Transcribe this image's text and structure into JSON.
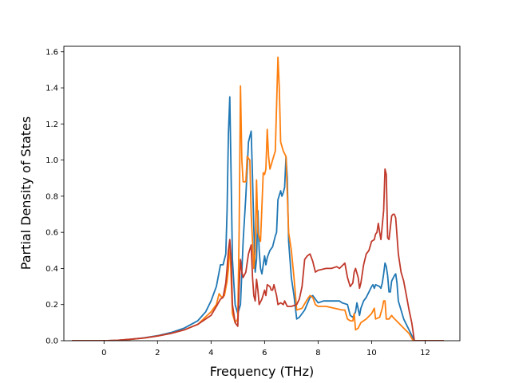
{
  "chart_data": {
    "type": "line",
    "title": "",
    "xlabel": "Frequency (THz)",
    "ylabel": "Partial Density of States",
    "xlim": [
      -1.5,
      13.3
    ],
    "ylim": [
      0.0,
      1.63
    ],
    "xticks": [
      0,
      2,
      4,
      6,
      8,
      10,
      12
    ],
    "yticks": [
      0.0,
      0.2,
      0.4,
      0.6,
      0.8,
      1.0,
      1.2,
      1.4,
      1.6
    ],
    "grid": false,
    "legend": "none",
    "series": [
      {
        "color": "#1f77b4",
        "points": [
          [
            -1.2,
            0
          ],
          [
            0,
            0
          ],
          [
            0.5,
            0.002
          ],
          [
            1,
            0.008
          ],
          [
            1.5,
            0.016
          ],
          [
            2,
            0.028
          ],
          [
            2.5,
            0.045
          ],
          [
            3,
            0.07
          ],
          [
            3.5,
            0.11
          ],
          [
            3.8,
            0.16
          ],
          [
            4,
            0.22
          ],
          [
            4.2,
            0.3
          ],
          [
            4.35,
            0.42
          ],
          [
            4.45,
            0.42
          ],
          [
            4.55,
            0.48
          ],
          [
            4.6,
            0.72
          ],
          [
            4.65,
            1.15
          ],
          [
            4.7,
            1.35
          ],
          [
            4.75,
            0.9
          ],
          [
            4.8,
            0.45
          ],
          [
            4.9,
            0.2
          ],
          [
            5.0,
            0.15
          ],
          [
            5.1,
            0.2
          ],
          [
            5.2,
            0.55
          ],
          [
            5.3,
            0.8
          ],
          [
            5.4,
            1.1
          ],
          [
            5.5,
            1.16
          ],
          [
            5.55,
            0.9
          ],
          [
            5.6,
            0.62
          ],
          [
            5.65,
            0.38
          ],
          [
            5.7,
            0.45
          ],
          [
            5.75,
            0.72
          ],
          [
            5.8,
            0.5
          ],
          [
            5.85,
            0.4
          ],
          [
            5.9,
            0.37
          ],
          [
            6.0,
            0.47
          ],
          [
            6.05,
            0.42
          ],
          [
            6.1,
            0.46
          ],
          [
            6.2,
            0.5
          ],
          [
            6.3,
            0.52
          ],
          [
            6.4,
            0.58
          ],
          [
            6.45,
            0.6
          ],
          [
            6.5,
            0.78
          ],
          [
            6.6,
            0.83
          ],
          [
            6.65,
            0.8
          ],
          [
            6.7,
            0.82
          ],
          [
            6.75,
            0.85
          ],
          [
            6.8,
            1.02
          ],
          [
            6.85,
            0.9
          ],
          [
            6.9,
            0.55
          ],
          [
            7.0,
            0.35
          ],
          [
            7.1,
            0.25
          ],
          [
            7.2,
            0.12
          ],
          [
            7.3,
            0.13
          ],
          [
            7.5,
            0.17
          ],
          [
            7.7,
            0.24
          ],
          [
            7.8,
            0.25
          ],
          [
            7.9,
            0.23
          ],
          [
            8.0,
            0.21
          ],
          [
            8.2,
            0.22
          ],
          [
            8.5,
            0.22
          ],
          [
            8.8,
            0.22
          ],
          [
            8.9,
            0.21
          ],
          [
            9.1,
            0.2
          ],
          [
            9.2,
            0.14
          ],
          [
            9.3,
            0.13
          ],
          [
            9.4,
            0.16
          ],
          [
            9.45,
            0.21
          ],
          [
            9.55,
            0.14
          ],
          [
            9.6,
            0.18
          ],
          [
            9.7,
            0.22
          ],
          [
            9.8,
            0.24
          ],
          [
            9.9,
            0.27
          ],
          [
            10.0,
            0.3
          ],
          [
            10.05,
            0.31
          ],
          [
            10.1,
            0.29
          ],
          [
            10.15,
            0.31
          ],
          [
            10.3,
            0.3
          ],
          [
            10.35,
            0.29
          ],
          [
            10.4,
            0.32
          ],
          [
            10.45,
            0.37
          ],
          [
            10.5,
            0.43
          ],
          [
            10.55,
            0.41
          ],
          [
            10.6,
            0.36
          ],
          [
            10.65,
            0.27
          ],
          [
            10.7,
            0.27
          ],
          [
            10.75,
            0.33
          ],
          [
            10.85,
            0.36
          ],
          [
            10.9,
            0.37
          ],
          [
            10.95,
            0.32
          ],
          [
            11.0,
            0.22
          ],
          [
            11.2,
            0.12
          ],
          [
            11.4,
            0.06
          ],
          [
            11.6,
            0.0
          ],
          [
            12.7,
            0.0
          ]
        ]
      },
      {
        "color": "#ff7f0e",
        "points": [
          [
            -1.2,
            0
          ],
          [
            0,
            0
          ],
          [
            0.5,
            0.002
          ],
          [
            1,
            0.008
          ],
          [
            1.5,
            0.015
          ],
          [
            2,
            0.026
          ],
          [
            2.5,
            0.04
          ],
          [
            3,
            0.06
          ],
          [
            3.5,
            0.09
          ],
          [
            4,
            0.16
          ],
          [
            4.2,
            0.2
          ],
          [
            4.3,
            0.26
          ],
          [
            4.4,
            0.24
          ],
          [
            4.5,
            0.25
          ],
          [
            4.6,
            0.33
          ],
          [
            4.65,
            0.4
          ],
          [
            4.7,
            0.55
          ],
          [
            4.75,
            0.35
          ],
          [
            4.8,
            0.15
          ],
          [
            4.9,
            0.1
          ],
          [
            5.0,
            0.12
          ],
          [
            5.05,
            0.6
          ],
          [
            5.1,
            1.41
          ],
          [
            5.15,
            1.0
          ],
          [
            5.2,
            0.88
          ],
          [
            5.3,
            0.88
          ],
          [
            5.35,
            1.02
          ],
          [
            5.45,
            1.0
          ],
          [
            5.5,
            0.7
          ],
          [
            5.6,
            0.4
          ],
          [
            5.65,
            0.5
          ],
          [
            5.7,
            0.89
          ],
          [
            5.75,
            0.6
          ],
          [
            5.85,
            0.55
          ],
          [
            5.95,
            0.93
          ],
          [
            6.0,
            0.92
          ],
          [
            6.05,
            0.95
          ],
          [
            6.1,
            1.17
          ],
          [
            6.15,
            1.02
          ],
          [
            6.2,
            0.95
          ],
          [
            6.3,
            1.0
          ],
          [
            6.4,
            1.05
          ],
          [
            6.45,
            1.3
          ],
          [
            6.5,
            1.57
          ],
          [
            6.55,
            1.4
          ],
          [
            6.6,
            1.1
          ],
          [
            6.7,
            1.05
          ],
          [
            6.8,
            1.02
          ],
          [
            6.9,
            0.6
          ],
          [
            7.0,
            0.5
          ],
          [
            7.1,
            0.35
          ],
          [
            7.2,
            0.17
          ],
          [
            7.4,
            0.18
          ],
          [
            7.6,
            0.23
          ],
          [
            7.7,
            0.25
          ],
          [
            7.8,
            0.24
          ],
          [
            7.9,
            0.2
          ],
          [
            8.0,
            0.19
          ],
          [
            8.3,
            0.19
          ],
          [
            8.6,
            0.18
          ],
          [
            8.9,
            0.17
          ],
          [
            9.0,
            0.17
          ],
          [
            9.1,
            0.12
          ],
          [
            9.2,
            0.11
          ],
          [
            9.3,
            0.11
          ],
          [
            9.35,
            0.15
          ],
          [
            9.4,
            0.06
          ],
          [
            9.5,
            0.07
          ],
          [
            9.6,
            0.1
          ],
          [
            9.8,
            0.12
          ],
          [
            10.0,
            0.15
          ],
          [
            10.1,
            0.18
          ],
          [
            10.15,
            0.12
          ],
          [
            10.3,
            0.13
          ],
          [
            10.4,
            0.18
          ],
          [
            10.45,
            0.22
          ],
          [
            10.5,
            0.22
          ],
          [
            10.55,
            0.12
          ],
          [
            10.65,
            0.12
          ],
          [
            10.75,
            0.14
          ],
          [
            10.8,
            0.13
          ],
          [
            11.0,
            0.1
          ],
          [
            11.2,
            0.07
          ],
          [
            11.4,
            0.04
          ],
          [
            11.55,
            0.0
          ],
          [
            12.7,
            0.0
          ]
        ]
      },
      {
        "color": "#c0392b",
        "points": [
          [
            -1.2,
            0
          ],
          [
            0,
            0
          ],
          [
            0.5,
            0.002
          ],
          [
            1,
            0.008
          ],
          [
            1.5,
            0.015
          ],
          [
            2,
            0.026
          ],
          [
            2.5,
            0.04
          ],
          [
            3,
            0.06
          ],
          [
            3.5,
            0.09
          ],
          [
            4,
            0.14
          ],
          [
            4.2,
            0.19
          ],
          [
            4.35,
            0.23
          ],
          [
            4.45,
            0.24
          ],
          [
            4.55,
            0.32
          ],
          [
            4.6,
            0.4
          ],
          [
            4.65,
            0.5
          ],
          [
            4.7,
            0.56
          ],
          [
            4.75,
            0.45
          ],
          [
            4.8,
            0.2
          ],
          [
            4.9,
            0.1
          ],
          [
            5.0,
            0.08
          ],
          [
            5.05,
            0.3
          ],
          [
            5.1,
            0.45
          ],
          [
            5.15,
            0.38
          ],
          [
            5.2,
            0.35
          ],
          [
            5.3,
            0.38
          ],
          [
            5.4,
            0.48
          ],
          [
            5.5,
            0.53
          ],
          [
            5.55,
            0.35
          ],
          [
            5.6,
            0.25
          ],
          [
            5.65,
            0.22
          ],
          [
            5.7,
            0.34
          ],
          [
            5.75,
            0.28
          ],
          [
            5.8,
            0.2
          ],
          [
            5.9,
            0.23
          ],
          [
            6.0,
            0.28
          ],
          [
            6.05,
            0.25
          ],
          [
            6.1,
            0.31
          ],
          [
            6.2,
            0.3
          ],
          [
            6.25,
            0.28
          ],
          [
            6.3,
            0.28
          ],
          [
            6.35,
            0.31
          ],
          [
            6.45,
            0.25
          ],
          [
            6.5,
            0.2
          ],
          [
            6.6,
            0.21
          ],
          [
            6.7,
            0.2
          ],
          [
            6.75,
            0.22
          ],
          [
            6.85,
            0.19
          ],
          [
            7.0,
            0.19
          ],
          [
            7.2,
            0.2
          ],
          [
            7.3,
            0.23
          ],
          [
            7.4,
            0.3
          ],
          [
            7.5,
            0.45
          ],
          [
            7.6,
            0.47
          ],
          [
            7.7,
            0.48
          ],
          [
            7.8,
            0.44
          ],
          [
            7.9,
            0.38
          ],
          [
            8.0,
            0.39
          ],
          [
            8.3,
            0.4
          ],
          [
            8.5,
            0.4
          ],
          [
            8.7,
            0.41
          ],
          [
            8.8,
            0.4
          ],
          [
            9.0,
            0.43
          ],
          [
            9.1,
            0.35
          ],
          [
            9.2,
            0.3
          ],
          [
            9.3,
            0.32
          ],
          [
            9.35,
            0.38
          ],
          [
            9.4,
            0.4
          ],
          [
            9.5,
            0.35
          ],
          [
            9.55,
            0.29
          ],
          [
            9.6,
            0.32
          ],
          [
            9.7,
            0.42
          ],
          [
            9.8,
            0.48
          ],
          [
            9.9,
            0.5
          ],
          [
            10.0,
            0.55
          ],
          [
            10.1,
            0.56
          ],
          [
            10.15,
            0.59
          ],
          [
            10.2,
            0.6
          ],
          [
            10.25,
            0.65
          ],
          [
            10.3,
            0.6
          ],
          [
            10.35,
            0.56
          ],
          [
            10.45,
            0.72
          ],
          [
            10.5,
            0.95
          ],
          [
            10.55,
            0.92
          ],
          [
            10.6,
            0.57
          ],
          [
            10.65,
            0.56
          ],
          [
            10.75,
            0.69
          ],
          [
            10.8,
            0.7
          ],
          [
            10.85,
            0.7
          ],
          [
            10.9,
            0.68
          ],
          [
            11.0,
            0.48
          ],
          [
            11.1,
            0.38
          ],
          [
            11.2,
            0.33
          ],
          [
            11.3,
            0.25
          ],
          [
            11.4,
            0.17
          ],
          [
            11.5,
            0.1
          ],
          [
            11.6,
            0.0
          ],
          [
            12.7,
            0.0
          ]
        ]
      }
    ]
  }
}
